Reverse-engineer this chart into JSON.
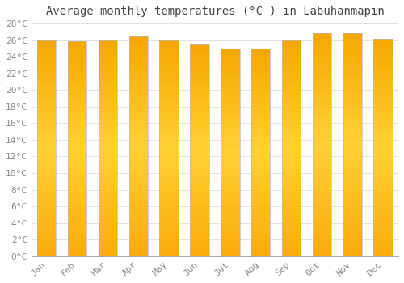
{
  "title": "Average monthly temperatures (°C ) in Labuhanmapin",
  "months": [
    "Jan",
    "Feb",
    "Mar",
    "Apr",
    "May",
    "Jun",
    "Jul",
    "Aug",
    "Sep",
    "Oct",
    "Nov",
    "Dec"
  ],
  "temperatures": [
    26.0,
    25.9,
    26.0,
    26.4,
    26.0,
    25.5,
    25.0,
    25.0,
    26.0,
    26.8,
    26.8,
    26.2
  ],
  "ylim": [
    0,
    28
  ],
  "yticks": [
    0,
    2,
    4,
    6,
    8,
    10,
    12,
    14,
    16,
    18,
    20,
    22,
    24,
    26,
    28
  ],
  "bar_color_top": "#F5A800",
  "bar_color_mid": "#FFCD00",
  "bar_color_bottom": "#F5A800",
  "background_color": "#FFFFFF",
  "grid_color": "#DDDDDD",
  "title_fontsize": 10,
  "tick_fontsize": 8,
  "title_color": "#444444",
  "tick_color": "#888888"
}
